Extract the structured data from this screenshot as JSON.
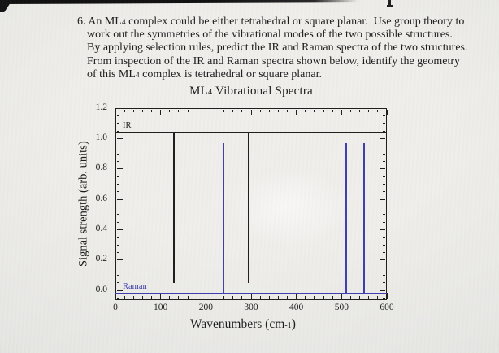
{
  "question": {
    "lines": [
      "6. An ML~4~ complex could be either tetrahedral or square planar.  Use group theory to",
      "work out the symmetries of the vibrational modes of the two possible structures.",
      "By applying selection rules, predict the IR and Raman spectra of the two structures.",
      "From inspection of the IR and Raman spectra shown below, identify the geometry",
      "of this ML~4~ complex is tetrahedral or square planar."
    ]
  },
  "chart_data": {
    "type": "line",
    "subtype": "stick-spectra",
    "title": "ML~4~ Vibrational Spectra",
    "xlabel": "Wavenumbers (cm^-1^)",
    "ylabel": "Signal strength (arb. units)",
    "xlim": [
      0,
      600
    ],
    "ylim": [
      -0.064,
      1.2
    ],
    "grid": false,
    "x_ticks": {
      "major": [
        0,
        100,
        200,
        300,
        400,
        500,
        600
      ],
      "labels": [
        "0",
        "100",
        "200",
        "300",
        "400",
        "500",
        "600"
      ],
      "minor_step": 20
    },
    "y_ticks": {
      "major": [
        0.0,
        0.2,
        0.4,
        0.6,
        0.8,
        1.0,
        1.2
      ],
      "labels": [
        "0.0",
        "0.2",
        "0.4",
        "0.6",
        "0.8",
        "1.0",
        "1.2"
      ],
      "minor_step": 0.05
    },
    "series": [
      {
        "name": "IR",
        "color": "#1c1c1c",
        "baseline": 1.04,
        "peak_direction": "down",
        "peaks": [
          {
            "wavenumber": 130,
            "tip": 0.05
          },
          {
            "wavenumber": 295,
            "tip": 0.05
          }
        ]
      },
      {
        "name": "Raman",
        "color": "#3c3cae",
        "baseline": -0.02,
        "peak_direction": "up",
        "peaks": [
          {
            "wavenumber": 240,
            "tip": 0.97
          },
          {
            "wavenumber": 510,
            "tip": 0.97
          },
          {
            "wavenumber": 550,
            "tip": 0.97
          }
        ]
      }
    ],
    "legend_position": "series name above its own baseline, left edge"
  }
}
